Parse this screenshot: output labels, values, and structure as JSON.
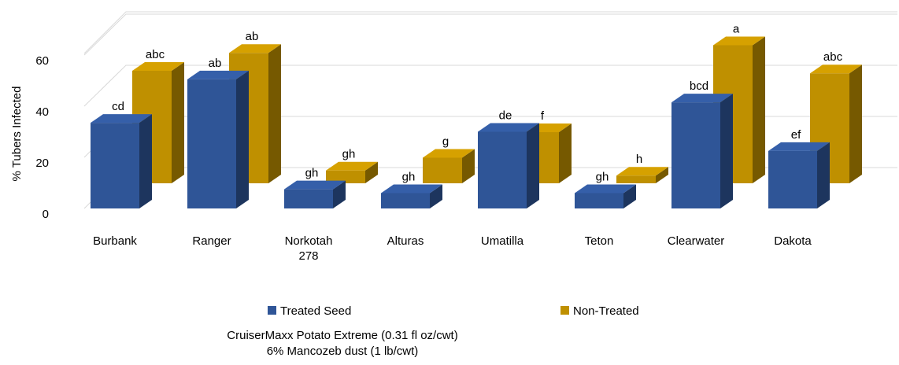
{
  "chart_data": {
    "type": "bar3d",
    "y_label": "% Tubers Infected",
    "categories": [
      "Burbank",
      "Ranger",
      "Norkotah 278",
      "Alturas",
      "Umatilla",
      "Teton",
      "Clearwater",
      "Dakota"
    ],
    "series": [
      {
        "name": "Treated Seed",
        "color": "#2f5597",
        "values": [
          33.5,
          50.5,
          7.5,
          6,
          30,
          6,
          41.5,
          22.5
        ],
        "letters": [
          "cd",
          "ab",
          "gh",
          "gh",
          "de",
          "gh",
          "bcd",
          "ef"
        ]
      },
      {
        "name": "Non-Treated",
        "color": "#bf9000",
        "values": [
          44,
          51,
          5,
          10,
          20,
          3,
          54,
          43
        ],
        "letters": [
          "abc",
          "ab",
          "gh",
          "g",
          "f",
          "h",
          "a",
          "abc"
        ]
      }
    ],
    "ylim": [
      0,
      70
    ],
    "yticks": [
      0,
      20,
      40,
      60
    ],
    "grid": true,
    "notes": [
      "CruiserMaxx Potato Extreme (0.31 fl oz/cwt)",
      "6% Mancozeb dust (1 lb/cwt)"
    ]
  }
}
